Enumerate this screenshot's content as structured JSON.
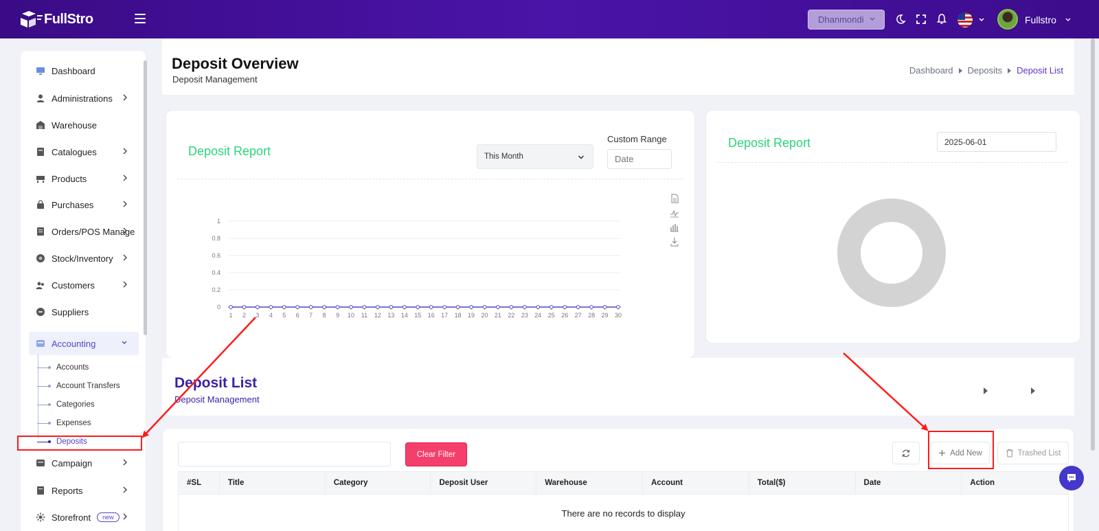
{
  "header": {
    "logo_text": "FullStro",
    "branch": "Dhanmondi",
    "user_name": "Fullstro"
  },
  "sidebar": {
    "items": [
      {
        "label": "Dashboard",
        "icon": "monitor-icon"
      },
      {
        "label": "Administrations",
        "icon": "user-icon"
      },
      {
        "label": "Warehouse",
        "icon": "warehouse-icon"
      },
      {
        "label": "Catalogues",
        "icon": "catalogue-icon"
      },
      {
        "label": "Products",
        "icon": "products-icon"
      },
      {
        "label": "Purchases",
        "icon": "bag-icon"
      },
      {
        "label": "Orders/POS Manage",
        "icon": "orders-icon"
      },
      {
        "label": "Stock/Inventory",
        "icon": "stock-icon"
      },
      {
        "label": "Customers",
        "icon": "customers-icon"
      },
      {
        "label": "Suppliers",
        "icon": "suppliers-icon"
      },
      {
        "label": "Accounting",
        "icon": "accounting-icon"
      },
      {
        "label": "Campaign",
        "icon": "campaign-icon"
      },
      {
        "label": "Reports",
        "icon": "reports-icon"
      },
      {
        "label": "Storefront",
        "icon": "storefront-icon"
      }
    ],
    "accounting_sub": [
      "Accounts",
      "Account Transfers",
      "Categories",
      "Expenses",
      "Deposits"
    ],
    "storefront_badge": "new"
  },
  "page": {
    "title": "Deposit Overview",
    "subtitle": "Deposit Management",
    "breadcrumb": [
      "Dashboard",
      "Deposits",
      "Deposit List"
    ]
  },
  "chart_card": {
    "title": "Deposit Report",
    "period": "This Month",
    "custom_range_label": "Custom Range",
    "date_placeholder": "Date"
  },
  "chart_data": {
    "type": "line",
    "x": [
      1,
      2,
      3,
      4,
      5,
      6,
      7,
      8,
      9,
      10,
      11,
      12,
      13,
      14,
      15,
      16,
      17,
      18,
      19,
      20,
      21,
      22,
      23,
      24,
      25,
      26,
      27,
      28,
      29,
      30
    ],
    "series": [
      {
        "values": [
          0,
          0,
          0,
          0,
          0,
          0,
          0,
          0,
          0,
          0,
          0,
          0,
          0,
          0,
          0,
          0,
          0,
          0,
          0,
          0,
          0,
          0,
          0,
          0,
          0,
          0,
          0,
          0,
          0,
          0
        ]
      }
    ],
    "y_ticks": [
      "0",
      "0.2",
      "0.4",
      "0.6",
      "0.8",
      "1"
    ],
    "ylim": [
      0,
      1
    ],
    "grid": true,
    "color": "#4f46c7"
  },
  "pie_card": {
    "title": "Deposit Report",
    "date": "2025-06-01",
    "donut_color": "#d3d3d3"
  },
  "list": {
    "title": "Deposit List",
    "subtitle": "Deposit Management",
    "clear_filter": "Clear Filter",
    "add_new": "Add New",
    "trashed_list": "Trashed List",
    "columns": [
      "#SL",
      "Title",
      "Category",
      "Deposit User",
      "Warehouse",
      "Account",
      "Total($)",
      "Date",
      "Action"
    ],
    "empty_message": "There are no records to display"
  },
  "colors": {
    "topbar": "#3a0b86",
    "accent": "#4f46c7",
    "report_title": "#2bd47b",
    "clear_filter": "#f43f6d",
    "annotation": "#ff1a1a"
  }
}
